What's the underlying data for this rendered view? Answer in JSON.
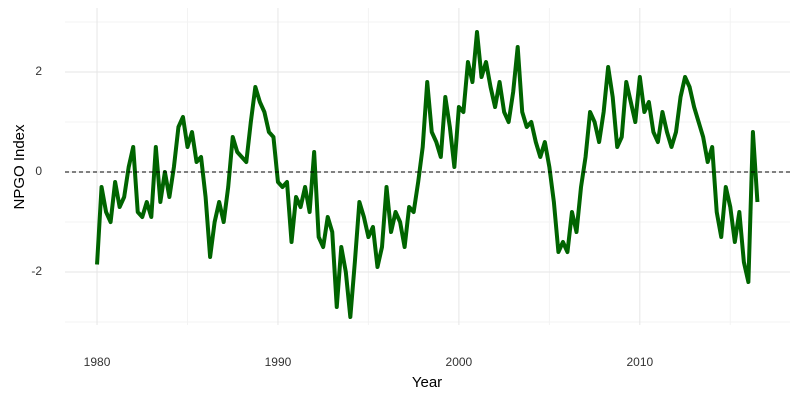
{
  "chart_data": {
    "type": "line",
    "x_label": "Year",
    "y_label": "NPGO Index",
    "x": [
      1980,
      1980.25,
      1980.5,
      1980.75,
      1981,
      1981.25,
      1981.5,
      1981.75,
      1982,
      1982.25,
      1982.5,
      1982.75,
      1983,
      1983.25,
      1983.5,
      1983.75,
      1984,
      1984.25,
      1984.5,
      1984.75,
      1985,
      1985.25,
      1985.5,
      1985.75,
      1986,
      1986.25,
      1986.5,
      1986.75,
      1987,
      1987.25,
      1987.5,
      1987.75,
      1988,
      1988.25,
      1988.5,
      1988.75,
      1989,
      1989.25,
      1989.5,
      1989.75,
      1990,
      1990.25,
      1990.5,
      1990.75,
      1991,
      1991.25,
      1991.5,
      1991.75,
      1992,
      1992.25,
      1992.5,
      1992.75,
      1993,
      1993.25,
      1993.5,
      1993.75,
      1994,
      1994.25,
      1994.5,
      1994.75,
      1995,
      1995.25,
      1995.5,
      1995.75,
      1996,
      1996.25,
      1996.5,
      1996.75,
      1997,
      1997.25,
      1997.5,
      1997.75,
      1998,
      1998.25,
      1998.5,
      1998.75,
      1999,
      1999.25,
      1999.5,
      1999.75,
      2000,
      2000.25,
      2000.5,
      2000.75,
      2001,
      2001.25,
      2001.5,
      2001.75,
      2002,
      2002.25,
      2002.5,
      2002.75,
      2003,
      2003.25,
      2003.5,
      2003.75,
      2004,
      2004.25,
      2004.5,
      2004.75,
      2005,
      2005.25,
      2005.5,
      2005.75,
      2006,
      2006.25,
      2006.5,
      2006.75,
      2007,
      2007.25,
      2007.5,
      2007.75,
      2008,
      2008.25,
      2008.5,
      2008.75,
      2009,
      2009.25,
      2009.5,
      2009.75,
      2010,
      2010.25,
      2010.5,
      2010.75,
      2011,
      2011.25,
      2011.5,
      2011.75,
      2012,
      2012.25,
      2012.5,
      2012.75,
      2013,
      2013.25,
      2013.5,
      2013.75,
      2014,
      2014.25,
      2014.5,
      2014.75,
      2015,
      2015.25,
      2015.5,
      2015.75,
      2016,
      2016.25,
      2016.5
    ],
    "series": [
      {
        "color": "#006400",
        "values": [
          -1.85,
          -0.3,
          -0.8,
          -1.0,
          -0.2,
          -0.7,
          -0.5,
          0.1,
          0.5,
          -0.8,
          -0.9,
          -0.6,
          -0.9,
          0.5,
          -0.6,
          0.0,
          -0.5,
          0.1,
          0.9,
          1.1,
          0.5,
          0.8,
          0.2,
          0.3,
          -0.5,
          -1.7,
          -1.0,
          -0.6,
          -1.0,
          -0.3,
          0.7,
          0.4,
          0.3,
          0.2,
          1.0,
          1.7,
          1.4,
          1.2,
          0.8,
          0.7,
          -0.2,
          -0.3,
          -0.2,
          -1.4,
          -0.5,
          -0.7,
          -0.3,
          -0.8,
          0.4,
          -1.3,
          -1.5,
          -0.9,
          -1.2,
          -2.7,
          -1.5,
          -2.0,
          -2.9,
          -1.8,
          -0.6,
          -0.9,
          -1.3,
          -1.1,
          -1.9,
          -1.5,
          -0.3,
          -1.2,
          -0.8,
          -1.0,
          -1.5,
          -0.7,
          -0.8,
          -0.2,
          0.5,
          1.8,
          0.8,
          0.6,
          0.3,
          1.5,
          0.9,
          0.1,
          1.3,
          1.2,
          2.2,
          1.8,
          2.8,
          1.9,
          2.2,
          1.7,
          1.3,
          1.8,
          1.2,
          1.0,
          1.6,
          2.5,
          1.2,
          0.9,
          1.0,
          0.6,
          0.3,
          0.6,
          0.1,
          -0.6,
          -1.6,
          -1.4,
          -1.6,
          -0.8,
          -1.2,
          -0.3,
          0.3,
          1.2,
          1.0,
          0.6,
          1.2,
          2.1,
          1.5,
          0.5,
          0.7,
          1.8,
          1.4,
          1.0,
          1.9,
          1.2,
          1.4,
          0.8,
          0.6,
          1.2,
          0.8,
          0.5,
          0.8,
          1.5,
          1.9,
          1.7,
          1.3,
          1.0,
          0.7,
          0.2,
          0.5,
          -0.8,
          -1.3,
          -0.3,
          -0.7,
          -1.4,
          -0.8,
          -1.8,
          -2.2,
          0.8,
          -0.6
        ]
      }
    ],
    "xlim": [
      1978.23,
      2018.3
    ],
    "ylim": [
      -3.06,
      3.28
    ],
    "xticks": [
      1980,
      1990,
      2000,
      2010
    ],
    "yticks": [
      -2,
      0,
      2
    ],
    "xminor": [
      1985,
      1995,
      2005,
      2015
    ],
    "yminor": [
      -3,
      -1,
      1,
      3
    ],
    "hline": 0,
    "grid": true
  }
}
